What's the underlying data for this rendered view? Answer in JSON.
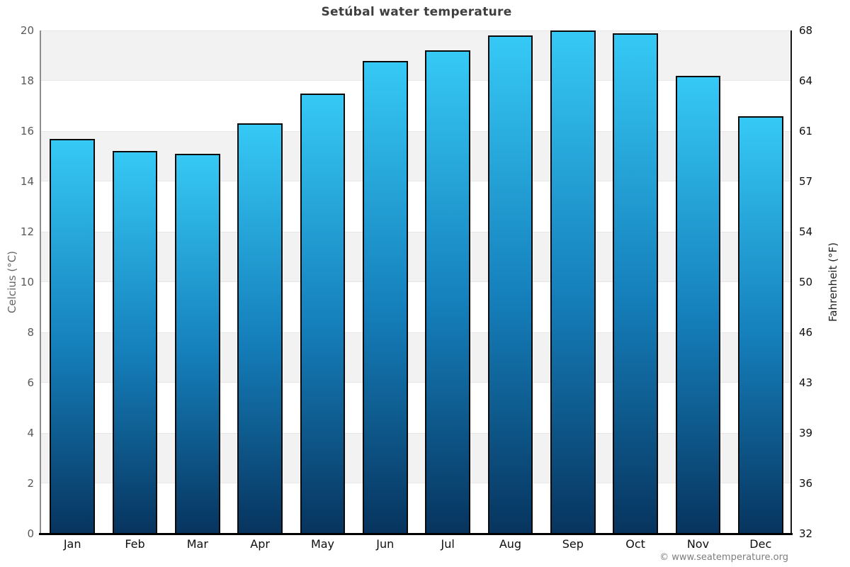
{
  "title": "Setúbal water temperature",
  "footer": "© www.seatemperature.org",
  "axes": {
    "left_label": "Celcius (°C)",
    "right_label": "Fahrenheit (°F)",
    "celsius_ticks": [
      20,
      18,
      16,
      14,
      12,
      10,
      8,
      6,
      4,
      2,
      0
    ],
    "fahrenheit_ticks": [
      68,
      64,
      61,
      57,
      54,
      50,
      46,
      43,
      39,
      36,
      32
    ]
  },
  "chart_data": {
    "type": "bar",
    "title": "Setúbal water temperature",
    "categories": [
      "Jan",
      "Feb",
      "Mar",
      "Apr",
      "May",
      "Jun",
      "Jul",
      "Aug",
      "Sep",
      "Oct",
      "Nov",
      "Dec"
    ],
    "values": [
      15.7,
      15.2,
      15.1,
      16.3,
      17.5,
      18.8,
      19.2,
      19.8,
      20.0,
      19.9,
      18.2,
      16.6
    ],
    "xlabel": "",
    "ylabel": "Celcius (°C)",
    "ylabel_right": "Fahrenheit (°F)",
    "ylim": [
      0,
      20
    ],
    "ylim_right_labels": [
      32,
      68
    ],
    "grid": "horizontal alternating bands, gray on even 2-degree intervals from top",
    "legend": "none"
  },
  "colors": {
    "bar_gradient_top": "#36c9f5",
    "bar_gradient_mid": "#1580bc",
    "bar_gradient_bottom": "#07345e",
    "bar_border": "#0a0a0a",
    "band_gray": "#f2f2f2",
    "band_white": "#ffffff",
    "title_text": "#3f3f3f",
    "left_tick_text": "#595959",
    "right_tick_text": "#0f0f0f",
    "month_text": "#0f0f0f",
    "footer_text": "#7d7d7d"
  }
}
